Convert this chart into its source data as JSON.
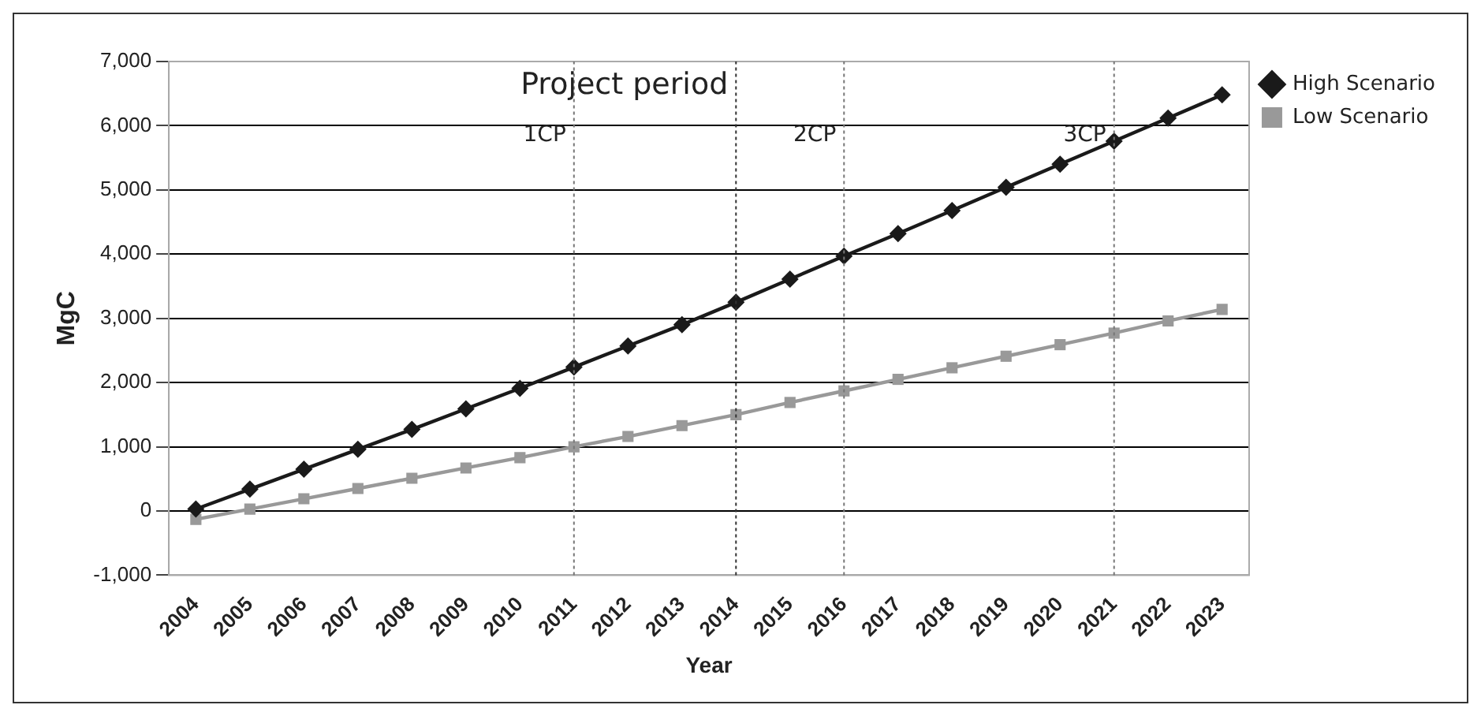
{
  "chart_data": {
    "type": "line",
    "xlabel": "Year",
    "ylabel": "MgC",
    "categories": [
      "2004",
      "2005",
      "2006",
      "2007",
      "2008",
      "2009",
      "2010",
      "2011",
      "2012",
      "2013",
      "2014",
      "2015",
      "2016",
      "2017",
      "2018",
      "2019",
      "2020",
      "2021",
      "2022",
      "2023"
    ],
    "series": [
      {
        "name": "High Scenario",
        "color": "#1a1a1a",
        "marker": "diamond",
        "values": [
          30,
          340,
          650,
          960,
          1270,
          1590,
          1910,
          2240,
          2570,
          2900,
          3250,
          3610,
          3970,
          4320,
          4680,
          5040,
          5400,
          5760,
          6120,
          6480
        ]
      },
      {
        "name": "Low Scenario",
        "color": "#999999",
        "marker": "square",
        "values": [
          -130,
          30,
          190,
          350,
          510,
          670,
          830,
          1000,
          1160,
          1330,
          1500,
          1690,
          1870,
          2050,
          2230,
          2410,
          2590,
          2770,
          2960,
          3140
        ]
      }
    ],
    "ylim": [
      -1000,
      7000
    ],
    "yticks": [
      {
        "value": -1000,
        "label": "-1,000"
      },
      0,
      {
        "value": 1000,
        "label": "1,000"
      },
      {
        "value": 2000,
        "label": "2,000"
      },
      {
        "value": 3000,
        "label": "3,000"
      },
      {
        "value": 4000,
        "label": "4,000"
      },
      {
        "value": 5000,
        "label": "5,000"
      },
      {
        "value": 6000,
        "label": "6,000"
      },
      {
        "value": 7000,
        "label": "7,000"
      }
    ],
    "grid": "y",
    "legend": "right",
    "ref_lines": [
      {
        "axis": "x",
        "value": "2011",
        "label": "1CP",
        "line_style": "dotted",
        "color": "#777777"
      },
      {
        "axis": "x",
        "value": "2014",
        "label": "Project period",
        "line_style": "dotted",
        "color": "#333333"
      },
      {
        "axis": "x",
        "value": "2016",
        "label": "2CP",
        "line_style": "dotted",
        "color": "#777777"
      },
      {
        "axis": "x",
        "value": "2021",
        "label": "3CP",
        "line_style": "dotted",
        "color": "#777777"
      }
    ]
  }
}
